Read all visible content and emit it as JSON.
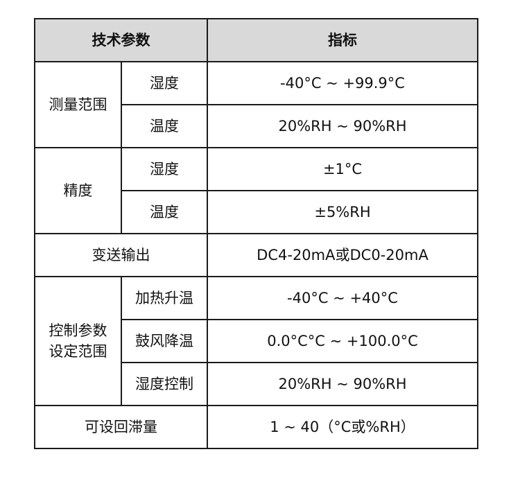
{
  "header": {
    "param": "技术参数",
    "spec": "指标"
  },
  "groups": {
    "range": {
      "label": "测量范围",
      "rows": [
        {
          "name": "湿度",
          "value": "-40°C ~ +99.9°C"
        },
        {
          "name": "温度",
          "value": "20%RH ~ 90%RH"
        }
      ]
    },
    "accuracy": {
      "label": "精度",
      "rows": [
        {
          "name": "湿度",
          "value": "±1°C"
        },
        {
          "name": "温度",
          "value": "±5%RH"
        }
      ]
    },
    "output": {
      "label": "变送输出",
      "value": "DC4-20mA或DC0-20mA"
    },
    "control": {
      "label1": "控制参数",
      "label2": "设定范围",
      "rows": [
        {
          "name": "加热升温",
          "value": "-40°C ~ +40°C"
        },
        {
          "name": "鼓风降温",
          "value": "0.0°C°C ~ +100.0°C"
        },
        {
          "name": "湿度控制",
          "value": "20%RH ~ 90%RH"
        }
      ]
    },
    "hysteresis": {
      "label": "可设回滞量",
      "value": "1 ~ 40（°C或%RH）"
    }
  }
}
